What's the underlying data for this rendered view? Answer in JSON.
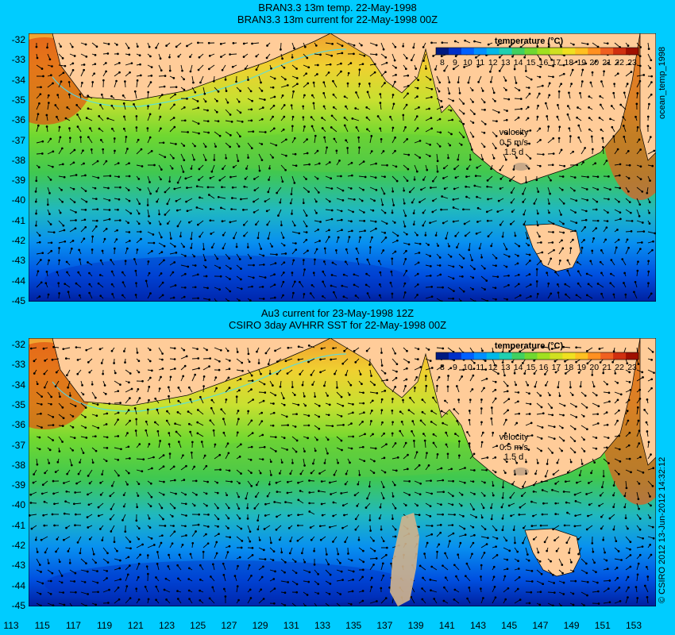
{
  "top": {
    "title_line1": "BRAN3.3 13m temp. 22-May-1998",
    "title_line2": "BRAN3.3 13m current for 22-May-1998 00Z",
    "legend_title": "temperature (°C)",
    "velocity_label": "velocity",
    "velocity_value": "0.5 m/s",
    "velocity_scale": "1.5 d",
    "side_label": "ocean_temp_1998"
  },
  "bottom": {
    "title_line1": "Au3 current for 23-May-1998 12Z",
    "title_line2": "CSIRO 3day AVHRR SST for 22-May-1998 00Z",
    "legend_title": "temperature (°C)",
    "velocity_label": "velocity",
    "velocity_value": "0.5 m/s",
    "velocity_scale": "1.5 d",
    "side_label": "© CSIRO 2012  13-Jun-2012 14:32:12"
  },
  "colorbar": {
    "ticks": [
      "8",
      "9",
      "10",
      "11",
      "12",
      "13",
      "14",
      "15",
      "16",
      "17",
      "18",
      "19",
      "20",
      "21",
      "22",
      "23"
    ],
    "colors": [
      "#001a80",
      "#0030c8",
      "#0060ff",
      "#0090ff",
      "#00b8e8",
      "#20d0b0",
      "#40d060",
      "#70d830",
      "#a0e020",
      "#d0e020",
      "#f0e020",
      "#ffc020",
      "#ff9020",
      "#f06020",
      "#d03010",
      "#a01000"
    ]
  },
  "lat_ticks": [
    "-32",
    "-33",
    "-34",
    "-35",
    "-36",
    "-37",
    "-38",
    "-39",
    "-40",
    "-41",
    "-42",
    "-43",
    "-44",
    "-45"
  ],
  "lon_ticks": [
    "113",
    "115",
    "117",
    "119",
    "121",
    "123",
    "125",
    "127",
    "129",
    "131",
    "133",
    "135",
    "137",
    "139",
    "141",
    "143",
    "145",
    "147",
    "149",
    "151",
    "153"
  ],
  "colors": {
    "background": "#00ccff",
    "land": "#ffcc99",
    "warm": "#f0a030",
    "cool": "#1040e0"
  }
}
